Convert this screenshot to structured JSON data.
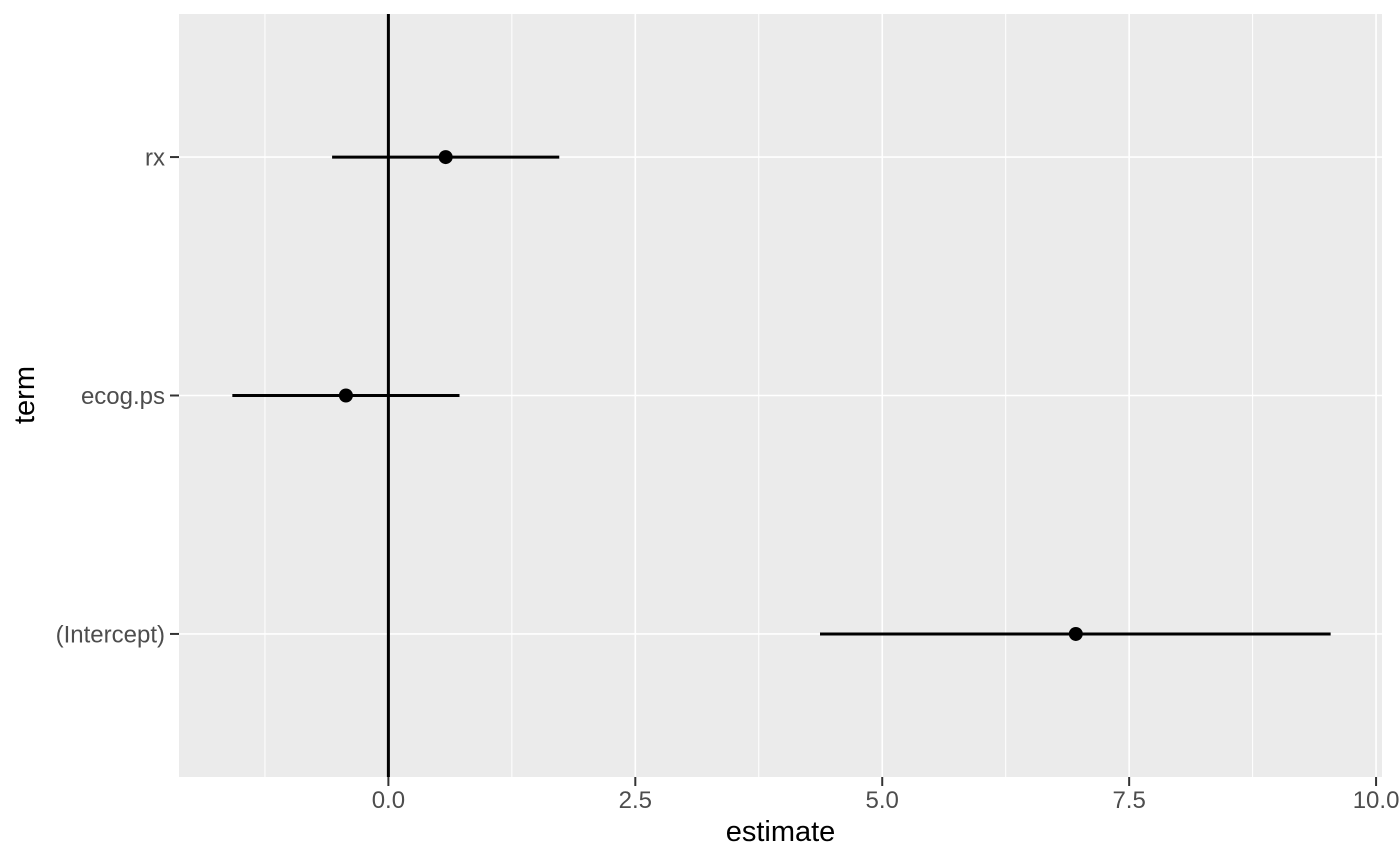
{
  "chart_data": {
    "type": "scatter",
    "subtype": "coefficient-forest-plot-with-errorbars",
    "title": "",
    "xlabel": "estimate",
    "ylabel": "term",
    "categories_bottom_to_top": [
      "(Intercept)",
      "ecog.ps",
      "rx"
    ],
    "points": [
      {
        "term": "rx",
        "estimate": 0.58,
        "conf_low": -0.57,
        "conf_high": 1.73
      },
      {
        "term": "ecog.ps",
        "estimate": -0.43,
        "conf_low": -1.58,
        "conf_high": 0.72
      },
      {
        "term": "(Intercept)",
        "estimate": 6.96,
        "conf_low": 4.37,
        "conf_high": 9.54
      }
    ],
    "x_ticks": [
      0.0,
      2.5,
      5.0,
      7.5,
      10.0
    ],
    "x_tick_labels": [
      "0.0",
      "2.5",
      "5.0",
      "7.5",
      "10.0"
    ],
    "x_minor_ticks": [
      -1.25,
      1.25,
      3.75,
      6.25,
      8.75
    ],
    "xlim": [
      -2.12,
      10.06
    ],
    "vline_x": 0,
    "grid": true,
    "legend": "none",
    "colors": {
      "panel_bg": "#EBEBEB",
      "grid": "#FFFFFF",
      "geom": "#000000",
      "axis_text": "#4D4D4D",
      "axis_title": "#000000",
      "tick_mark": "#333333",
      "background": "#FFFFFF"
    }
  }
}
